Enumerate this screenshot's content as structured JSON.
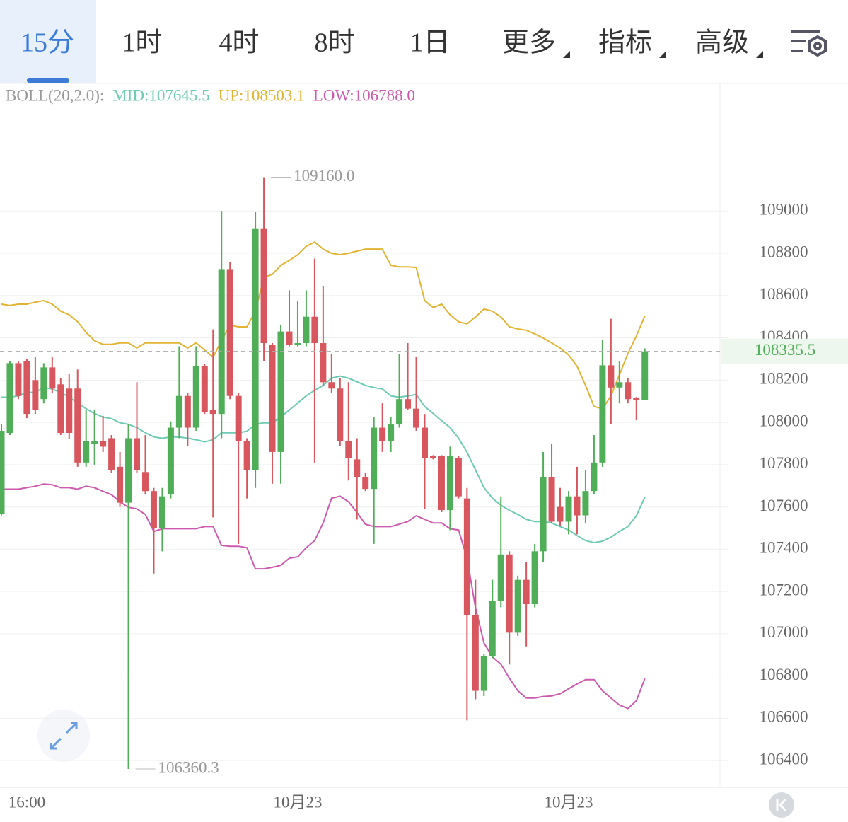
{
  "tabs": [
    "15分",
    "1时",
    "4时",
    "8时",
    "1日",
    "更多",
    "指标",
    "高级"
  ],
  "chart_data": {
    "type": "candlestick",
    "indicator_label": "BOLL(20,2.0):",
    "up_color": "#4fae57",
    "down_color": "#d8575e",
    "categories": [
      null,
      null,
      null,
      "16:00",
      null,
      null,
      null,
      null,
      null,
      null,
      null,
      null,
      null,
      null,
      null,
      null,
      null,
      null,
      null,
      null,
      null,
      null,
      null,
      null,
      null,
      null,
      null,
      null,
      null,
      null,
      null,
      null,
      null,
      null,
      null,
      "10月23",
      null,
      null,
      null,
      null,
      null,
      null,
      null,
      null,
      null,
      null,
      null,
      null,
      null,
      null,
      null,
      null,
      null,
      null,
      null,
      null,
      null,
      null,
      null,
      null,
      null,
      null,
      null,
      null,
      null,
      null,
      null,
      "10月23",
      null,
      null,
      null,
      null,
      null,
      null,
      null,
      null,
      null
    ],
    "open": [
      107565,
      107950,
      108280,
      108290,
      108200,
      108110,
      108260,
      108180,
      108160,
      108160,
      107810,
      107900,
      107910,
      107925,
      107790,
      107620,
      107925,
      107765,
      107675,
      107500,
      107660,
      107975,
      108125,
      107975,
      108265,
      108060,
      108040,
      108725,
      108125,
      107910,
      107775,
      108915,
      108365,
      107860,
      108430,
      108365,
      108375,
      108500,
      108375,
      108190,
      108160,
      107910,
      107825,
      107740,
      107685,
      107975,
      107910,
      107990,
      108110,
      108065,
      107975,
      107840,
      107840,
      107585,
      107830,
      107640,
      107090,
      106730,
      106895,
      107155,
      107375,
      107005,
      107255,
      107140,
      107390,
      107740,
      107600,
      107530,
      107650,
      107560,
      107675,
      107810,
      108270,
      108165,
      108190,
      108115,
      108105
    ],
    "high": [
      107990,
      108290,
      108290,
      108300,
      108310,
      108280,
      108310,
      108210,
      108230,
      108250,
      108060,
      108060,
      108030,
      107940,
      107860,
      107990,
      108190,
      107940,
      107690,
      107690,
      108005,
      108360,
      108140,
      108360,
      108275,
      108440,
      109000,
      108760,
      108140,
      107925,
      108995,
      109160.0,
      108375,
      108460,
      108625,
      108575,
      108625,
      108775,
      108645,
      108325,
      108210,
      108190,
      107925,
      107760,
      108025,
      108090,
      108025,
      108325,
      108375,
      108310,
      108040,
      107845,
      107845,
      107885,
      107840,
      107690,
      107255,
      106905,
      107255,
      107650,
      107390,
      107275,
      107340,
      107425,
      107860,
      107900,
      107690,
      107675,
      107790,
      107775,
      107940,
      108390,
      108490,
      108290,
      108210,
      108120,
      108350
    ],
    "low": [
      107560,
      107940,
      108110,
      108020,
      108040,
      108090,
      108140,
      107940,
      107920,
      107790,
      107790,
      107800,
      107860,
      107760,
      107600,
      106360.3,
      107760,
      107660,
      107285,
      107390,
      107640,
      107925,
      107890,
      107960,
      108040,
      107550,
      107925,
      108110,
      107425,
      107640,
      107690,
      108290,
      107710,
      107710,
      108360,
      108360,
      108360,
      107810,
      108175,
      108140,
      107890,
      107725,
      107540,
      107675,
      107425,
      107860,
      107860,
      107975,
      108060,
      107960,
      107590,
      107825,
      107575,
      107490,
      107640,
      106590,
      106690,
      106705,
      106885,
      107125,
      106855,
      106990,
      106940,
      107125,
      107340,
      107525,
      107510,
      107470,
      107470,
      107525,
      107660,
      107790,
      107990,
      108090,
      108090,
      108010,
      108105
    ],
    "close": [
      107960,
      108280,
      108125,
      108040,
      108060,
      108260,
      108160,
      107950,
      107950,
      107810,
      107910,
      107910,
      107885,
      107775,
      107620,
      107925,
      107775,
      107675,
      107500,
      107650,
      107975,
      108125,
      107975,
      108265,
      108050,
      108040,
      108725,
      108125,
      107910,
      107775,
      108915,
      108375,
      107860,
      108430,
      108365,
      108375,
      108500,
      108375,
      108190,
      108160,
      107910,
      107830,
      107740,
      107685,
      107975,
      107910,
      107990,
      108110,
      108065,
      107975,
      107830,
      107830,
      107585,
      107840,
      107650,
      107090,
      106730,
      106895,
      107155,
      107375,
      107005,
      107255,
      107140,
      107390,
      107740,
      107530,
      107530,
      107650,
      107560,
      107675,
      107810,
      108270,
      108165,
      108190,
      108110,
      108105,
      108335.5
    ],
    "series": [
      {
        "label": "MID:107645.5",
        "color": "#6fcbb3",
        "values": [
          108119,
          108119,
          108125,
          108142,
          108142,
          108165,
          108158,
          108142,
          108119,
          108092,
          108065,
          108042,
          108025,
          108018,
          107998,
          107991,
          107975,
          107951,
          107931,
          107925,
          107931,
          107931,
          107925,
          107918,
          107908,
          107918,
          107951,
          107951,
          107951,
          107958,
          107991,
          107998,
          107998,
          108025,
          108058,
          108092,
          108125,
          108152,
          108175,
          108209,
          108219,
          108209,
          108192,
          108175,
          108165,
          108158,
          108125,
          108119,
          108125,
          108132,
          108075,
          108042,
          108008,
          107975,
          107925,
          107858,
          107775,
          107691,
          107641,
          107608,
          107584,
          107564,
          107541,
          107531,
          107531,
          107524,
          107507,
          107491,
          107464,
          107441,
          107431,
          107438,
          107457,
          107484,
          107507,
          107558,
          107645.5
        ]
      },
      {
        "label": "UP:108503.1",
        "color": "#e2b434",
        "values": [
          108559,
          108553,
          108559,
          108559,
          108569,
          108576,
          108559,
          108526,
          108509,
          108476,
          108426,
          108386,
          108369,
          108369,
          108376,
          108376,
          108352,
          108376,
          108376,
          108376,
          108376,
          108376,
          108352,
          108376,
          108342,
          108309,
          108386,
          108459,
          108452,
          108452,
          108526,
          108686,
          108700,
          108743,
          108766,
          108793,
          108833,
          108853,
          108820,
          108800,
          108793,
          108800,
          108810,
          108820,
          108820,
          108820,
          108743,
          108736,
          108736,
          108733,
          108576,
          108543,
          108559,
          108509,
          108476,
          108466,
          108499,
          108536,
          108526,
          108499,
          108452,
          108442,
          108436,
          108419,
          108399,
          108376,
          108352,
          108319,
          108265,
          108175,
          108075,
          108065,
          108125,
          108225,
          108326,
          108409,
          108503.1
        ]
      },
      {
        "label": "LOW:106788.0",
        "color": "#cc5aae",
        "values": [
          107684,
          107684,
          107684,
          107691,
          107698,
          107708,
          107705,
          107691,
          107691,
          107684,
          107698,
          107691,
          107674,
          107658,
          107624,
          107598,
          107591,
          107564,
          107484,
          107497,
          107497,
          107497,
          107497,
          107497,
          107507,
          107507,
          107418,
          107414,
          107414,
          107407,
          107307,
          107307,
          107314,
          107324,
          107357,
          107364,
          107407,
          107441,
          107524,
          107641,
          107651,
          107624,
          107574,
          107518,
          107507,
          107507,
          107507,
          107518,
          107531,
          107558,
          107541,
          107524,
          107524,
          107497,
          107491,
          107357,
          107123,
          106956,
          106890,
          106856,
          106790,
          106730,
          106696,
          106696,
          106703,
          106706,
          106716,
          106740,
          106763,
          106783,
          106783,
          106730,
          106696,
          106663,
          106646,
          106683,
          106788.0
        ]
      }
    ],
    "ylim": [
      106280,
      109600
    ],
    "yticks": [
      106400,
      106600,
      106800,
      107000,
      107200,
      107400,
      107600,
      107800,
      108000,
      108200,
      108400,
      108600,
      108800,
      109000
    ],
    "grid": true,
    "max_label": "109160.0",
    "min_label": "106360.3",
    "last_price_label": "108335.5"
  }
}
